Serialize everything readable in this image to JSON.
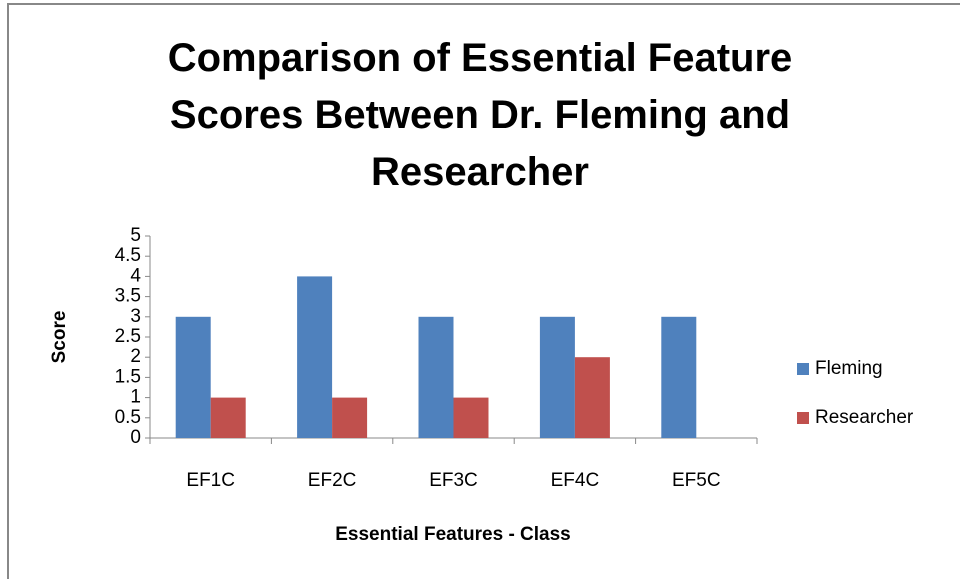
{
  "chart_data": {
    "type": "bar",
    "title": "Comparison of Essential Feature Scores Between Dr. Fleming and Researcher",
    "x_label": "Essential Features - Class",
    "y_label": "Score",
    "categories": [
      "EF1C",
      "EF2C",
      "EF3C",
      "EF4C",
      "EF5C"
    ],
    "series": [
      {
        "name": "Fleming",
        "color": "#4f81bd",
        "values": [
          3,
          4,
          3,
          3,
          3
        ]
      },
      {
        "name": "Researcher",
        "color": "#c0504d",
        "values": [
          1,
          1,
          1,
          2,
          0
        ]
      }
    ],
    "ylim": [
      0,
      5
    ],
    "yticks": [
      0,
      0.5,
      1,
      1.5,
      2,
      2.5,
      3,
      3.5,
      4,
      4.5,
      5
    ],
    "legend": "right"
  }
}
